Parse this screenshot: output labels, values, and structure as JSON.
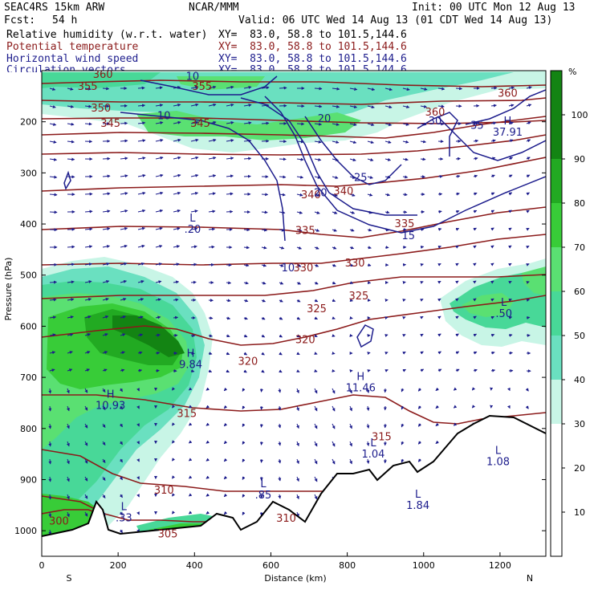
{
  "header": {
    "model": "SEAC4RS 15km ARW",
    "org": "NCAR/MMM",
    "init": "Init: 00 UTC Mon 12 Aug 13",
    "fcst_label": "Fcst:",
    "fcst_value": "54 h",
    "valid": "Valid: 06 UTC Wed 14 Aug 13 (01 CDT Wed 14 Aug 13)",
    "fields": [
      {
        "name": "Relative humidity (w.r.t. water)",
        "xy": "XY=  83.0, 58.8 to 101.5,144.6",
        "color": "#000000"
      },
      {
        "name": "Potential temperature",
        "xy": "XY=  83.0, 58.8 to 101.5,144.6",
        "color": "#8b1a1a"
      },
      {
        "name": "Horizontal wind speed",
        "xy": "XY=  83.0, 58.8 to 101.5,144.6",
        "color": "#1c1c8c"
      },
      {
        "name": "Circulation vectors",
        "xy": "XY=  83.0, 58.8 to 101.5,144.6",
        "color": "#1c1c8c"
      }
    ]
  },
  "chart_data": {
    "type": "heatmap",
    "xlabel": "Distance (km)",
    "ylabel": "Pressure (hPa)",
    "x_ticks": [
      0,
      200,
      400,
      600,
      800,
      1000,
      1200
    ],
    "y_ticks": [
      200,
      300,
      400,
      500,
      600,
      700,
      800,
      900,
      1000
    ],
    "xlim": [
      0,
      1320
    ],
    "ylim_hpa": [
      100,
      1050
    ],
    "x_end_labels": {
      "left": "S",
      "right": "N"
    },
    "colorbar": {
      "unit": "%",
      "ticks": [
        10,
        20,
        30,
        40,
        50,
        60,
        70,
        80,
        90,
        100
      ],
      "bins": [
        {
          "from": 0,
          "to": 30,
          "color": "#ffffff"
        },
        {
          "from": 30,
          "to": 40,
          "color": "#c8f5e6"
        },
        {
          "from": 40,
          "to": 50,
          "color": "#6ae0c0"
        },
        {
          "from": 50,
          "to": 60,
          "color": "#48d898"
        },
        {
          "from": 60,
          "to": 70,
          "color": "#5ae072"
        },
        {
          "from": 70,
          "to": 80,
          "color": "#38cc38"
        },
        {
          "from": 80,
          "to": 90,
          "color": "#22aa22"
        },
        {
          "from": 90,
          "to": 110,
          "color": "#138413"
        }
      ]
    },
    "theta_labels": [
      {
        "text": "360",
        "x": 160,
        "p": 106
      },
      {
        "text": "355",
        "x": 120,
        "p": 130
      },
      {
        "text": "355",
        "x": 420,
        "p": 130
      },
      {
        "text": "350",
        "x": 155,
        "p": 172
      },
      {
        "text": "345",
        "x": 180,
        "p": 202
      },
      {
        "text": "345",
        "x": 415,
        "p": 202
      },
      {
        "text": "360",
        "x": 1030,
        "p": 180
      },
      {
        "text": "360",
        "x": 1220,
        "p": 143
      },
      {
        "text": "340",
        "x": 705,
        "p": 342
      },
      {
        "text": "340",
        "x": 790,
        "p": 335
      },
      {
        "text": "335",
        "x": 690,
        "p": 412
      },
      {
        "text": "335",
        "x": 950,
        "p": 398
      },
      {
        "text": "330",
        "x": 685,
        "p": 485
      },
      {
        "text": "330",
        "x": 820,
        "p": 475
      },
      {
        "text": "325",
        "x": 720,
        "p": 565
      },
      {
        "text": "325",
        "x": 830,
        "p": 540
      },
      {
        "text": "320",
        "x": 690,
        "p": 625
      },
      {
        "text": "320",
        "x": 540,
        "p": 668
      },
      {
        "text": "315",
        "x": 380,
        "p": 770
      },
      {
        "text": "315",
        "x": 890,
        "p": 815
      },
      {
        "text": "310",
        "x": 320,
        "p": 920
      },
      {
        "text": "310",
        "x": 640,
        "p": 975
      },
      {
        "text": "305",
        "x": 330,
        "p": 1005
      },
      {
        "text": "300",
        "x": 45,
        "p": 980
      }
    ],
    "wind_labels": [
      {
        "text": "10",
        "x": 395,
        "p": 110
      },
      {
        "text": "10",
        "x": 320,
        "p": 187
      },
      {
        "text": "20",
        "x": 740,
        "p": 193
      },
      {
        "text": "30",
        "x": 1030,
        "p": 197
      },
      {
        "text": "35",
        "x": 1140,
        "p": 206
      },
      {
        "text": "25",
        "x": 835,
        "p": 308
      },
      {
        "text": "20",
        "x": 730,
        "p": 338
      },
      {
        "text": "15",
        "x": 960,
        "p": 422
      },
      {
        "text": "10",
        "x": 645,
        "p": 485
      }
    ],
    "extrema": [
      {
        "type": "L",
        "value": ".20",
        "x": 395,
        "p": 395
      },
      {
        "type": "L",
        "value": ".50",
        "x": 1210,
        "p": 560
      },
      {
        "type": "H",
        "value": "9.84",
        "x": 390,
        "p": 660
      },
      {
        "type": "H",
        "value": "11.46",
        "x": 835,
        "p": 705
      },
      {
        "type": "H",
        "value": "10.93",
        "x": 180,
        "p": 740
      },
      {
        "type": "H",
        "value": "37.91",
        "x": 1220,
        "p": 205
      },
      {
        "type": "L",
        "value": "1.04",
        "x": 868,
        "p": 835
      },
      {
        "type": "L",
        "value": "1.08",
        "x": 1195,
        "p": 850
      },
      {
        "type": "L",
        "value": ".85",
        "x": 580,
        "p": 915
      },
      {
        "type": "L",
        "value": ".33",
        "x": 215,
        "p": 960
      },
      {
        "type": "L",
        "value": "1.84",
        "x": 985,
        "p": 935
      }
    ]
  }
}
